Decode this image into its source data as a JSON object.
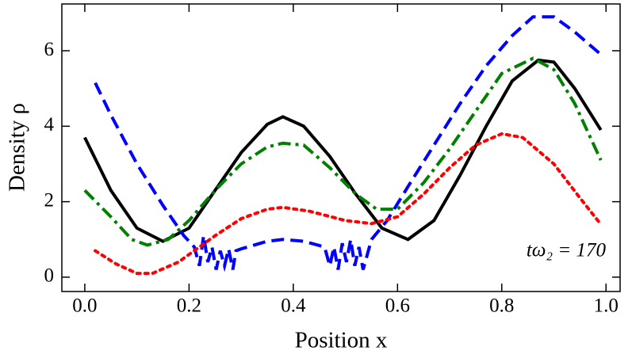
{
  "chart_data": {
    "type": "line",
    "xlabel": "Position x",
    "ylabel": "Density ρ",
    "annotation": "tω₂ = 170",
    "xlim": [
      -0.044,
      1.027
    ],
    "ylim": [
      -0.38,
      7.24
    ],
    "xticks": [
      {
        "value": 0,
        "label": "0.0"
      },
      {
        "value": 0.2,
        "label": "0.2"
      },
      {
        "value": 0.4,
        "label": "0.4"
      },
      {
        "value": 0.6,
        "label": "0.6"
      },
      {
        "value": 0.8,
        "label": "0.8"
      },
      {
        "value": 1,
        "label": "1.0"
      }
    ],
    "yticks": [
      0,
      2,
      4,
      6
    ],
    "series": [
      {
        "color": "#000000",
        "dash": "solid",
        "x": [
          0,
          0.05,
          0.1,
          0.15,
          0.2,
          0.25,
          0.3,
          0.35,
          0.38,
          0.42,
          0.47,
          0.52,
          0.57,
          0.62,
          0.67,
          0.72,
          0.77,
          0.82,
          0.87,
          0.9,
          0.94,
          0.99
        ],
        "values": [
          3.7,
          2.3,
          1.3,
          0.95,
          1.3,
          2.3,
          3.3,
          4.05,
          4.25,
          4.0,
          3.2,
          2.2,
          1.3,
          1.0,
          1.5,
          2.7,
          4.0,
          5.2,
          5.75,
          5.7,
          5.0,
          3.9
        ]
      },
      {
        "color": "#0000ff",
        "dash": "dashed",
        "x": [
          0.02,
          0.05,
          0.1,
          0.15,
          0.19,
          0.21,
          0.22,
          0.228,
          0.236,
          0.244,
          0.252,
          0.26,
          0.268,
          0.276,
          0.284,
          0.29,
          0.3,
          0.35,
          0.38,
          0.42,
          0.46,
          0.47,
          0.478,
          0.486,
          0.494,
          0.502,
          0.51,
          0.518,
          0.526,
          0.534,
          0.55,
          0.58,
          0.62,
          0.67,
          0.72,
          0.77,
          0.82,
          0.86,
          0.9,
          0.94,
          0.99
        ],
        "values": [
          5.15,
          4.3,
          3.0,
          1.9,
          1.1,
          0.8,
          0.3,
          1.1,
          0.4,
          0.8,
          0.2,
          0.7,
          0.3,
          0.75,
          0.2,
          0.7,
          0.75,
          0.95,
          1.0,
          0.95,
          0.8,
          0.3,
          0.8,
          0.2,
          0.9,
          0.4,
          1.0,
          0.3,
          0.8,
          0.2,
          1.0,
          1.5,
          2.4,
          3.5,
          4.6,
          5.6,
          6.4,
          6.9,
          6.9,
          6.5,
          5.9
        ]
      },
      {
        "color": "#008000",
        "dash": "dashdot",
        "x": [
          0,
          0.05,
          0.09,
          0.12,
          0.16,
          0.2,
          0.25,
          0.3,
          0.35,
          0.38,
          0.42,
          0.47,
          0.52,
          0.56,
          0.6,
          0.65,
          0.7,
          0.75,
          0.8,
          0.86,
          0.9,
          0.94,
          0.99
        ],
        "values": [
          2.3,
          1.6,
          1.0,
          0.85,
          1.0,
          1.5,
          2.3,
          3.0,
          3.45,
          3.55,
          3.5,
          2.9,
          2.2,
          1.8,
          1.8,
          2.5,
          3.4,
          4.4,
          5.4,
          5.8,
          5.5,
          4.6,
          3.1
        ]
      },
      {
        "color": "#ff0000",
        "dash": "dotted",
        "x": [
          0.02,
          0.06,
          0.1,
          0.13,
          0.18,
          0.25,
          0.3,
          0.35,
          0.38,
          0.43,
          0.5,
          0.55,
          0.6,
          0.65,
          0.7,
          0.75,
          0.8,
          0.84,
          0.9,
          0.95,
          0.99
        ],
        "values": [
          0.7,
          0.35,
          0.1,
          0.1,
          0.4,
          1.1,
          1.55,
          1.8,
          1.85,
          1.75,
          1.5,
          1.42,
          1.6,
          2.2,
          2.9,
          3.5,
          3.8,
          3.7,
          3.0,
          2.1,
          1.4
        ]
      }
    ]
  }
}
